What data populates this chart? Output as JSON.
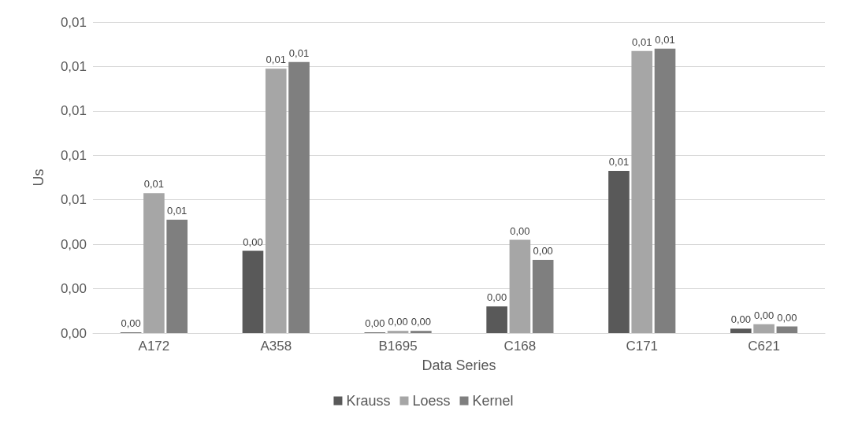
{
  "chart_data": {
    "type": "bar",
    "xlabel": "Data Series",
    "ylabel": "Us",
    "categories": [
      "A172",
      "A358",
      "B1695",
      "C168",
      "C171",
      "C621"
    ],
    "series": [
      {
        "name": "Krauss",
        "color": "#595959",
        "values": [
          3e-05,
          0.0037,
          3e-05,
          0.0012,
          0.0073,
          0.0002
        ],
        "value_labels": [
          "0,00",
          "0,00",
          "0,00",
          "0,00",
          "0,01",
          "0,00"
        ]
      },
      {
        "name": "Loess",
        "color": "#a6a6a6",
        "values": [
          0.0063,
          0.0119,
          0.0001,
          0.0042,
          0.0127,
          0.0004
        ],
        "value_labels": [
          "0,01",
          "0,01",
          "0,00",
          "0,00",
          "0,01",
          "0,00"
        ]
      },
      {
        "name": "Kernel",
        "color": "#7f7f7f",
        "values": [
          0.0051,
          0.0122,
          0.0001,
          0.0033,
          0.0128,
          0.0003
        ],
        "value_labels": [
          "0,01",
          "0,01",
          "0,00",
          "0,00",
          "0,01",
          "0,00"
        ]
      }
    ],
    "ylim": [
      0,
      0.014
    ],
    "yticks": [
      {
        "value": 0,
        "label": "0,00"
      },
      {
        "value": 0.002,
        "label": "0,00"
      },
      {
        "value": 0.004,
        "label": "0,00"
      },
      {
        "value": 0.006,
        "label": "0,01"
      },
      {
        "value": 0.008,
        "label": "0,01"
      },
      {
        "value": 0.01,
        "label": "0,01"
      },
      {
        "value": 0.012,
        "label": "0,01"
      },
      {
        "value": 0.014,
        "label": "0,01"
      }
    ],
    "grid": "y",
    "legend": "bottom"
  }
}
